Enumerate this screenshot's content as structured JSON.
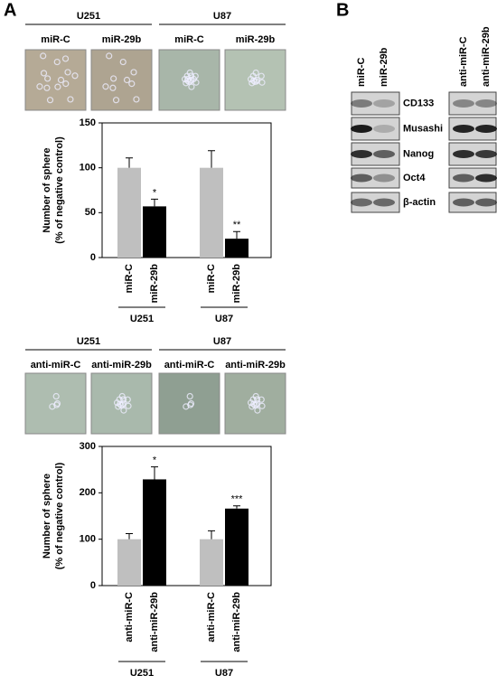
{
  "panel_labels": [
    "A",
    "B"
  ],
  "sphere_images": [
    {
      "groups": [
        {
          "name": "U251",
          "labels": [
            "miR-C",
            "miR-29b"
          ]
        },
        {
          "name": "U87",
          "labels": [
            "miR-C",
            "miR-29b"
          ]
        }
      ]
    },
    {
      "groups": [
        {
          "name": "U251",
          "labels": [
            "anti-miR-C",
            "anti-miR-29b"
          ]
        },
        {
          "name": "U87",
          "labels": [
            "anti-miR-C",
            "anti-miR-29b"
          ]
        }
      ]
    }
  ],
  "western_blot": {
    "columns": [
      "miR-C",
      "miR-29b",
      "anti-miR-C",
      "anti-miR-29b"
    ],
    "rows": [
      "CD133",
      "Musashi",
      "Nanog",
      "Oct4",
      "β-actin"
    ]
  },
  "chart_data": [
    {
      "type": "bar",
      "ylabel": [
        "Number of sphere",
        "(% of negative control)"
      ],
      "categories": [
        "miR-C",
        "miR-29b",
        "miR-C",
        "miR-29b"
      ],
      "groups": [
        "U251",
        "U87"
      ],
      "values": [
        100,
        57,
        100,
        21
      ],
      "errors": [
        11,
        8,
        19,
        8
      ],
      "annotations": [
        null,
        "*",
        null,
        "**"
      ],
      "colors": [
        "#bfbfbf",
        "#000000",
        "#bfbfbf",
        "#000000"
      ],
      "ylim": [
        0,
        150
      ],
      "yticks": [
        0,
        50,
        100,
        150
      ]
    },
    {
      "type": "bar",
      "ylabel": [
        "Number of sphere",
        "(% of negative control)"
      ],
      "categories": [
        "anti-miR-C",
        "anti-miR-29b",
        "anti-miR-C",
        "anti-miR-29b"
      ],
      "groups": [
        "U251",
        "U87"
      ],
      "values": [
        100,
        229,
        100,
        166
      ],
      "errors": [
        12,
        27,
        18,
        6
      ],
      "annotations": [
        null,
        "*",
        null,
        "***"
      ],
      "colors": [
        "#bfbfbf",
        "#000000",
        "#bfbfbf",
        "#000000"
      ],
      "ylim": [
        0,
        300
      ],
      "yticks": [
        0,
        100,
        200,
        300
      ]
    }
  ]
}
